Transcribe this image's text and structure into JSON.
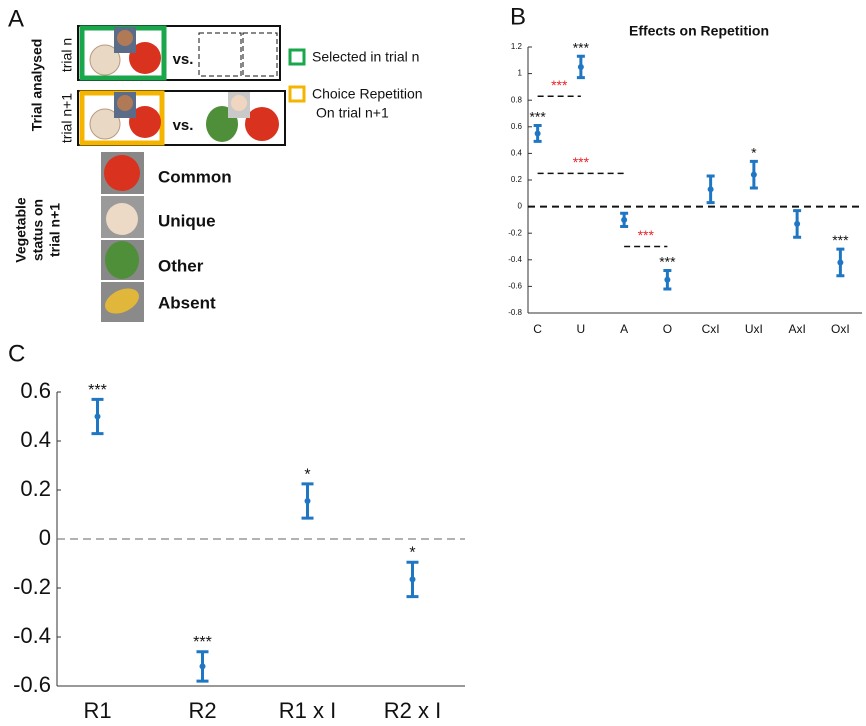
{
  "diagram": {
    "label": "A",
    "row_group_label": "Trial analysed",
    "rows": [
      {
        "label": "trial n",
        "vs": "vs."
      },
      {
        "label": "trial n+1",
        "vs": "vs."
      }
    ],
    "legend": [
      {
        "lines": [
          "Selected in trial n"
        ],
        "color": "#1aa64a"
      },
      {
        "lines": [
          "Choice Repetition",
          "On trial n+1"
        ],
        "color": "#f5b400"
      }
    ],
    "status_label": [
      "Vegetable",
      "status on",
      "trial n+1"
    ],
    "status": [
      "Common",
      "Unique",
      "Other",
      "Absent"
    ]
  },
  "chart_data": [
    {
      "type": "errorbar",
      "panel_label": "B",
      "title": "Effects on Repetition",
      "categories": [
        "C",
        "U",
        "A",
        "O",
        "CxI",
        "UxI",
        "AxI",
        "OxI"
      ],
      "values": [
        0.55,
        1.05,
        -0.1,
        -0.55,
        0.13,
        0.24,
        -0.13,
        -0.42
      ],
      "errors": [
        0.06,
        0.08,
        0.05,
        0.07,
        0.1,
        0.1,
        0.1,
        0.1
      ],
      "significance": [
        "***",
        "***",
        null,
        "***",
        null,
        "*",
        null,
        "***"
      ],
      "comparisons": [
        {
          "from": "C",
          "to": "U",
          "y": 0.83,
          "label": "***",
          "color": "#e8242b"
        },
        {
          "from": "C",
          "to": "A",
          "y": 0.25,
          "label": "***",
          "color": "#e8242b"
        },
        {
          "from": "A",
          "to": "O",
          "y": -0.3,
          "label": "***",
          "color": "#e8242b"
        }
      ],
      "color": "#1f77c4",
      "zero_line": true,
      "ylim": [
        -0.8,
        1.2
      ],
      "yticks": [
        -0.8,
        -0.6,
        -0.4,
        -0.2,
        0,
        0.2,
        0.4,
        0.6,
        0.8,
        1,
        1.2
      ]
    },
    {
      "type": "errorbar",
      "panel_label": "C",
      "categories": [
        "R1",
        "R2",
        "R1 x I",
        "R2 x I"
      ],
      "values": [
        0.5,
        -0.52,
        0.155,
        -0.165
      ],
      "errors": [
        0.07,
        0.06,
        0.07,
        0.07
      ],
      "significance": [
        "***",
        "***",
        "*",
        "*"
      ],
      "color": "#1f77c4",
      "zero_line": true,
      "ylim": [
        -0.6,
        0.6
      ],
      "yticks": [
        -0.6,
        -0.4,
        -0.2,
        0,
        0.2,
        0.4,
        0.6
      ]
    }
  ]
}
